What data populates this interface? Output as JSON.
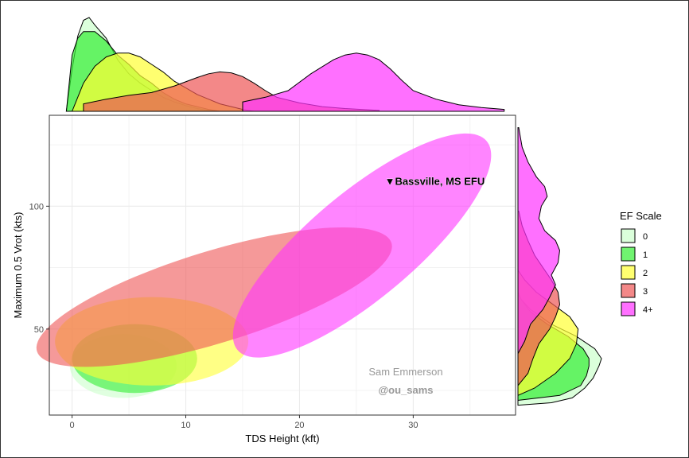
{
  "chart_data": {
    "type": "scatter",
    "title": "",
    "xlabel": "TDS Height (kft)",
    "ylabel": "Maximum 0.5 Vrot (kts)",
    "xlim": [
      -2,
      39
    ],
    "ylim": [
      15,
      137
    ],
    "x_ticks": [
      "0",
      "10",
      "20",
      "30"
    ],
    "y_ticks": [
      "50",
      "100"
    ],
    "grid": true,
    "legend": {
      "title": "EF Scale",
      "placement": "right"
    },
    "series": [
      {
        "name": "0",
        "color": "#ccffcc",
        "ellipse": {
          "cx": 4.5,
          "cy": 35,
          "rx": 4.7,
          "ry": 13,
          "angle_deg": 0
        },
        "marginal_x": [
          [
            -0.5,
            0
          ],
          [
            0,
            0.45
          ],
          [
            0.5,
            0.8
          ],
          [
            1,
            0.97
          ],
          [
            1.5,
            1.0
          ],
          [
            2,
            0.92
          ],
          [
            3,
            0.78
          ],
          [
            4,
            0.55
          ],
          [
            5,
            0.4
          ],
          [
            6,
            0.3
          ],
          [
            7,
            0.22
          ],
          [
            8,
            0.15
          ],
          [
            9,
            0.1
          ],
          [
            10,
            0.06
          ],
          [
            11,
            0.03
          ],
          [
            12,
            0.01
          ],
          [
            13,
            0
          ]
        ],
        "marginal_y": [
          [
            19,
            0
          ],
          [
            20,
            0.4
          ],
          [
            22,
            0.65
          ],
          [
            26,
            0.8
          ],
          [
            30,
            0.9
          ],
          [
            35,
            0.97
          ],
          [
            38,
            1.0
          ],
          [
            42,
            0.92
          ],
          [
            47,
            0.7
          ],
          [
            52,
            0.4
          ],
          [
            58,
            0.15
          ],
          [
            62,
            0.04
          ],
          [
            64,
            0
          ]
        ]
      },
      {
        "name": "1",
        "color": "#33ee33",
        "ellipse": {
          "cx": 5.5,
          "cy": 38,
          "rx": 5.5,
          "ry": 14,
          "angle_deg": 0
        },
        "marginal_x": [
          [
            -0.5,
            0
          ],
          [
            0,
            0.6
          ],
          [
            0.5,
            0.78
          ],
          [
            1,
            0.85
          ],
          [
            2,
            0.85
          ],
          [
            3,
            0.75
          ],
          [
            4,
            0.6
          ],
          [
            5,
            0.5
          ],
          [
            6,
            0.38
          ],
          [
            7,
            0.3
          ],
          [
            8,
            0.2
          ],
          [
            9,
            0.13
          ],
          [
            10,
            0.08
          ],
          [
            11,
            0.05
          ],
          [
            12,
            0.02
          ],
          [
            13,
            0
          ]
        ],
        "marginal_y": [
          [
            21,
            0
          ],
          [
            23,
            0.5
          ],
          [
            27,
            0.75
          ],
          [
            31,
            0.82
          ],
          [
            35,
            0.85
          ],
          [
            38,
            0.85
          ],
          [
            42,
            0.78
          ],
          [
            47,
            0.6
          ],
          [
            52,
            0.35
          ],
          [
            57,
            0.15
          ],
          [
            62,
            0.04
          ],
          [
            65,
            0
          ]
        ]
      },
      {
        "name": "2",
        "color": "#ffff33",
        "ellipse": {
          "cx": 7,
          "cy": 45,
          "rx": 8.5,
          "ry": 18,
          "angle_deg": 0
        },
        "marginal_x": [
          [
            0,
            0
          ],
          [
            1,
            0.3
          ],
          [
            2,
            0.48
          ],
          [
            3,
            0.58
          ],
          [
            4,
            0.62
          ],
          [
            5,
            0.62
          ],
          [
            6,
            0.58
          ],
          [
            7,
            0.5
          ],
          [
            8,
            0.42
          ],
          [
            9,
            0.32
          ],
          [
            10,
            0.25
          ],
          [
            11,
            0.18
          ],
          [
            12,
            0.13
          ],
          [
            13,
            0.08
          ],
          [
            14,
            0.05
          ],
          [
            15,
            0.02
          ],
          [
            16,
            0
          ]
        ],
        "marginal_y": [
          [
            23,
            0
          ],
          [
            26,
            0.2
          ],
          [
            32,
            0.45
          ],
          [
            38,
            0.62
          ],
          [
            44,
            0.7
          ],
          [
            50,
            0.72
          ],
          [
            55,
            0.62
          ],
          [
            60,
            0.42
          ],
          [
            65,
            0.22
          ],
          [
            70,
            0.08
          ],
          [
            74,
            0
          ]
        ]
      },
      {
        "name": "3",
        "color": "#ee5555",
        "ellipse": {
          "cx": 12.5,
          "cy": 63,
          "rx": 16.3,
          "ry": 18.7,
          "angle_deg": -17
        },
        "marginal_x": [
          [
            1,
            0.08
          ],
          [
            3,
            0.13
          ],
          [
            5,
            0.17
          ],
          [
            7,
            0.2
          ],
          [
            9,
            0.27
          ],
          [
            11,
            0.36
          ],
          [
            12,
            0.4
          ],
          [
            13,
            0.42
          ],
          [
            14,
            0.41
          ],
          [
            15,
            0.37
          ],
          [
            16,
            0.3
          ],
          [
            17,
            0.22
          ],
          [
            18,
            0.15
          ],
          [
            20,
            0.09
          ],
          [
            22,
            0.05
          ],
          [
            24,
            0.03
          ],
          [
            27,
            0.01
          ]
        ],
        "marginal_y": [
          [
            27,
            0
          ],
          [
            32,
            0.12
          ],
          [
            38,
            0.18
          ],
          [
            44,
            0.25
          ],
          [
            50,
            0.38
          ],
          [
            55,
            0.45
          ],
          [
            60,
            0.5
          ],
          [
            65,
            0.48
          ],
          [
            70,
            0.4
          ],
          [
            75,
            0.3
          ],
          [
            80,
            0.2
          ],
          [
            86,
            0.12
          ],
          [
            92,
            0.05
          ],
          [
            98,
            0.01
          ]
        ]
      },
      {
        "name": "4+",
        "color": "#ff33ff",
        "ellipse": {
          "cx": 25.5,
          "cy": 84,
          "rx": 14.3,
          "ry": 21.5,
          "angle_deg": -40
        },
        "marginal_x": [
          [
            15,
            0.1
          ],
          [
            17,
            0.15
          ],
          [
            19,
            0.22
          ],
          [
            21,
            0.4
          ],
          [
            23,
            0.55
          ],
          [
            24,
            0.6
          ],
          [
            25,
            0.62
          ],
          [
            26,
            0.6
          ],
          [
            27,
            0.55
          ],
          [
            28,
            0.45
          ],
          [
            29,
            0.33
          ],
          [
            30,
            0.22
          ],
          [
            32,
            0.13
          ],
          [
            34,
            0.07
          ],
          [
            36,
            0.04
          ],
          [
            38,
            0.02
          ]
        ],
        "marginal_y": [
          [
            40,
            0
          ],
          [
            45,
            0.08
          ],
          [
            52,
            0.15
          ],
          [
            58,
            0.3
          ],
          [
            63,
            0.38
          ],
          [
            68,
            0.45
          ],
          [
            72,
            0.4
          ],
          [
            77,
            0.48
          ],
          [
            82,
            0.5
          ],
          [
            86,
            0.45
          ],
          [
            90,
            0.32
          ],
          [
            95,
            0.25
          ],
          [
            100,
            0.28
          ],
          [
            104,
            0.35
          ],
          [
            108,
            0.32
          ],
          [
            112,
            0.22
          ],
          [
            118,
            0.12
          ],
          [
            124,
            0.05
          ],
          [
            132,
            0.01
          ]
        ]
      }
    ],
    "annotation": {
      "marker": "▼",
      "text": "Bassville, MS EFU",
      "x": 27.5,
      "y": 110
    }
  },
  "credits": {
    "name": "Sam Emmerson",
    "handle": "@ou_sams"
  }
}
